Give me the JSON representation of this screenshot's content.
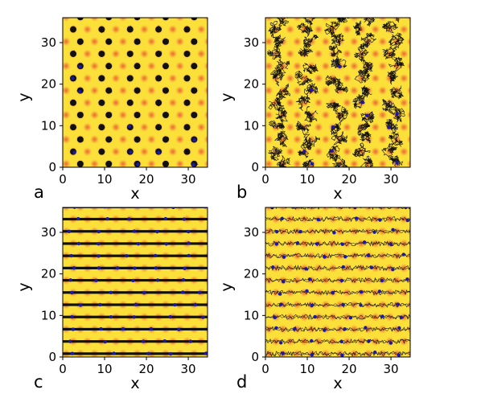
{
  "chart_data": [
    {
      "type": "heatmap",
      "panel_label": "a",
      "pattern": "hexagonal-lattice-localized-clusters",
      "xlabel": "x",
      "ylabel": "y",
      "xlim": [
        0,
        34.6
      ],
      "ylim": [
        0,
        36
      ],
      "xticks": [
        0,
        10,
        20,
        30
      ],
      "yticks": [
        0,
        10,
        20,
        30
      ],
      "grid": false,
      "legend": null
    },
    {
      "type": "heatmap",
      "panel_label": "b",
      "pattern": "hexagonal-lattice-diffuse-clusters",
      "xlabel": "x",
      "ylabel": "y",
      "xlim": [
        0,
        34.6
      ],
      "ylim": [
        0,
        36
      ],
      "xticks": [
        0,
        10,
        20,
        30
      ],
      "yticks": [
        0,
        10,
        20,
        30
      ],
      "grid": false,
      "legend": null
    },
    {
      "type": "heatmap",
      "panel_label": "c",
      "pattern": "horizontal-stripes",
      "xlabel": "x",
      "ylabel": "y",
      "xlim": [
        0,
        34.6
      ],
      "ylim": [
        0,
        36
      ],
      "xticks": [
        0,
        10,
        20,
        30
      ],
      "yticks": [
        0,
        10,
        20,
        30
      ],
      "grid": false,
      "legend": null
    },
    {
      "type": "heatmap",
      "panel_label": "d",
      "pattern": "horizontal-stripes-diffuse",
      "xlabel": "x",
      "ylabel": "y",
      "xlim": [
        0,
        34.6
      ],
      "ylim": [
        0,
        36
      ],
      "xticks": [
        0,
        10,
        20,
        30
      ],
      "yticks": [
        0,
        10,
        20,
        30
      ],
      "grid": false,
      "legend": null
    }
  ],
  "colors": {
    "background_field": "#fce03a",
    "hot_spot": "#f08a2a",
    "trajectory": "#111111",
    "particle": "#1a1aa8"
  }
}
